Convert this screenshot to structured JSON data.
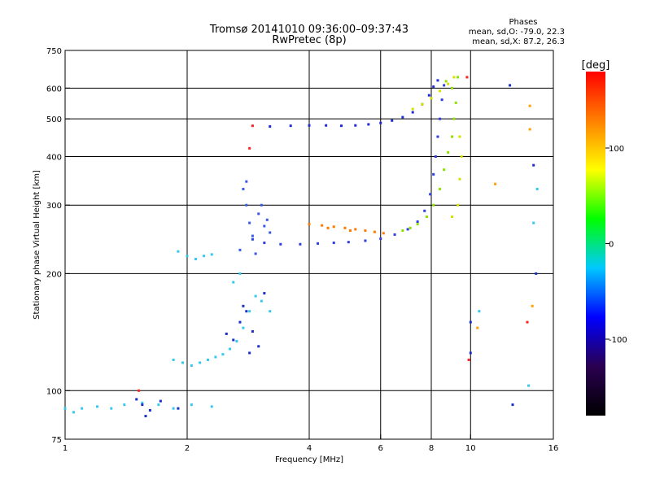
{
  "chart_data": {
    "type": "scatter",
    "title": "Tromsø 20141010 09:36:00–09:37:43",
    "subtitle": "RwPretec (8p)",
    "phases_header": "Phases",
    "phase_stats": [
      "mean, sd,O: -79.0, 22.3",
      "mean, sd,X:  87.2, 26.3"
    ],
    "xlabel": "Frequency [MHz]",
    "ylabel": "Stationary phase Virtual Height [km]",
    "x_scale": "log",
    "y_scale": "log",
    "xlim": [
      1,
      16
    ],
    "ylim": [
      75,
      750
    ],
    "x_ticks": [
      1,
      2,
      4,
      6,
      8,
      10,
      16
    ],
    "y_ticks": [
      75,
      100,
      200,
      300,
      400,
      500,
      600,
      750
    ],
    "x_gridlines": [
      2,
      4,
      6,
      8,
      10
    ],
    "y_gridlines": [
      100,
      200,
      300,
      400,
      500,
      600
    ],
    "grid": true,
    "colorbar": {
      "label": "[deg]",
      "min": -180,
      "max": 180,
      "ticks": [
        100,
        0,
        -100
      ],
      "colors": [
        "#000000",
        "#2a0050",
        "#0000ff",
        "#00c8ff",
        "#00ff00",
        "#ffff00",
        "#ff8000",
        "#ff0000"
      ]
    },
    "series": [
      {
        "color": "#1e2bd8",
        "points": [
          [
            3.2,
            478
          ],
          [
            3.6,
            480
          ],
          [
            4.0,
            481
          ],
          [
            4.4,
            481
          ],
          [
            4.8,
            480
          ],
          [
            5.2,
            481
          ],
          [
            5.6,
            484
          ],
          [
            6.0,
            488
          ],
          [
            6.4,
            495
          ],
          [
            6.8,
            505
          ],
          [
            7.2,
            520
          ],
          [
            7.6,
            545
          ],
          [
            7.9,
            575
          ],
          [
            8.1,
            605
          ],
          [
            8.3,
            628
          ]
        ]
      },
      {
        "color": "#2e3ee0",
        "points": [
          [
            2.9,
            245
          ],
          [
            3.1,
            240
          ],
          [
            3.4,
            238
          ],
          [
            3.8,
            238
          ],
          [
            4.2,
            239
          ],
          [
            4.6,
            240
          ],
          [
            5.0,
            241
          ],
          [
            5.5,
            243
          ],
          [
            6.0,
            246
          ],
          [
            6.5,
            252
          ],
          [
            7.0,
            260
          ],
          [
            7.4,
            272
          ],
          [
            7.7,
            290
          ],
          [
            7.95,
            320
          ],
          [
            8.1,
            360
          ],
          [
            8.2,
            400
          ],
          [
            8.3,
            450
          ],
          [
            8.4,
            500
          ],
          [
            8.5,
            560
          ],
          [
            8.6,
            610
          ]
        ]
      },
      {
        "color": "#3a58e8",
        "points": [
          [
            2.75,
            330
          ],
          [
            2.8,
            300
          ],
          [
            2.85,
            270
          ],
          [
            2.9,
            250
          ],
          [
            3.0,
            285
          ],
          [
            3.1,
            265
          ],
          [
            3.2,
            255
          ],
          [
            2.7,
            230
          ],
          [
            2.95,
            225
          ],
          [
            3.05,
            300
          ],
          [
            2.8,
            345
          ],
          [
            3.15,
            275
          ]
        ]
      },
      {
        "color": "#ff7a00",
        "points": [
          [
            4.0,
            268
          ],
          [
            4.3,
            266
          ],
          [
            4.6,
            264
          ],
          [
            4.9,
            262
          ],
          [
            5.2,
            260
          ],
          [
            5.5,
            258
          ],
          [
            5.8,
            256
          ],
          [
            6.1,
            254
          ],
          [
            4.45,
            262
          ],
          [
            5.05,
            258
          ]
        ]
      },
      {
        "color": "#8ee000",
        "points": [
          [
            6.8,
            258
          ],
          [
            7.1,
            262
          ],
          [
            7.4,
            268
          ],
          [
            7.8,
            280
          ],
          [
            8.1,
            300
          ],
          [
            8.4,
            330
          ],
          [
            8.6,
            370
          ],
          [
            8.8,
            410
          ],
          [
            9.0,
            450
          ],
          [
            9.1,
            500
          ],
          [
            9.2,
            550
          ],
          [
            9.0,
            600
          ],
          [
            8.7,
            625
          ],
          [
            9.3,
            640
          ]
        ]
      },
      {
        "color": "#d8e000",
        "points": [
          [
            7.2,
            530
          ],
          [
            7.6,
            545
          ],
          [
            8.0,
            565
          ],
          [
            8.4,
            590
          ],
          [
            8.8,
            615
          ],
          [
            9.1,
            640
          ],
          [
            9.4,
            450
          ],
          [
            9.5,
            400
          ],
          [
            9.4,
            350
          ],
          [
            9.3,
            300
          ],
          [
            9.0,
            280
          ]
        ]
      },
      {
        "color": "#35c8ee",
        "points": [
          [
            1.9,
            228
          ],
          [
            2.0,
            222
          ],
          [
            2.1,
            218
          ],
          [
            2.2,
            222
          ],
          [
            2.3,
            224
          ],
          [
            1.85,
            120
          ],
          [
            1.95,
            118
          ],
          [
            2.05,
            116
          ],
          [
            2.15,
            118
          ],
          [
            2.25,
            120
          ],
          [
            2.35,
            122
          ],
          [
            2.45,
            124
          ],
          [
            2.55,
            128
          ],
          [
            2.65,
            134
          ],
          [
            2.75,
            145
          ],
          [
            2.85,
            160
          ],
          [
            2.95,
            175
          ],
          [
            3.05,
            170
          ],
          [
            3.2,
            160
          ],
          [
            2.6,
            190
          ],
          [
            2.7,
            200
          ]
        ]
      },
      {
        "color": "#1a2ec8",
        "points": [
          [
            2.5,
            140
          ],
          [
            2.6,
            135
          ],
          [
            2.7,
            150
          ],
          [
            2.8,
            160
          ],
          [
            2.9,
            142
          ],
          [
            3.0,
            130
          ],
          [
            2.75,
            165
          ],
          [
            2.85,
            125
          ],
          [
            3.1,
            178
          ]
        ]
      },
      {
        "color": "#35c8ee",
        "points": [
          [
            1.0,
            90
          ],
          [
            1.05,
            88
          ],
          [
            1.1,
            90
          ],
          [
            1.2,
            91
          ],
          [
            1.3,
            90
          ],
          [
            1.4,
            92
          ],
          [
            1.55,
            93
          ],
          [
            1.7,
            92
          ],
          [
            1.85,
            90
          ],
          [
            2.05,
            92
          ],
          [
            2.3,
            91
          ]
        ]
      },
      {
        "color": "#1a2ec8",
        "points": [
          [
            1.5,
            95
          ],
          [
            1.55,
            92
          ],
          [
            1.62,
            89
          ],
          [
            1.72,
            94
          ],
          [
            1.58,
            86
          ],
          [
            1.9,
            90
          ]
        ]
      },
      {
        "color": "#ff2020",
        "points": [
          [
            1.52,
            100
          ],
          [
            2.85,
            420
          ],
          [
            2.9,
            480
          ],
          [
            9.8,
            640
          ],
          [
            9.9,
            120
          ],
          [
            13.8,
            150
          ]
        ]
      },
      {
        "color": "#1a2ec8",
        "points": [
          [
            10.0,
            150
          ],
          [
            10.0,
            125
          ],
          [
            12.5,
            610
          ],
          [
            14.5,
            200
          ],
          [
            12.7,
            92
          ],
          [
            14.3,
            380
          ]
        ]
      },
      {
        "color": "#ffa000",
        "points": [
          [
            14.0,
            540
          ],
          [
            14.0,
            470
          ],
          [
            11.5,
            340
          ],
          [
            14.2,
            165
          ],
          [
            10.4,
            145
          ]
        ]
      },
      {
        "color": "#35c8ee",
        "points": [
          [
            10.5,
            160
          ],
          [
            14.3,
            270
          ],
          [
            14.6,
            330
          ],
          [
            13.9,
            103
          ]
        ]
      }
    ]
  }
}
